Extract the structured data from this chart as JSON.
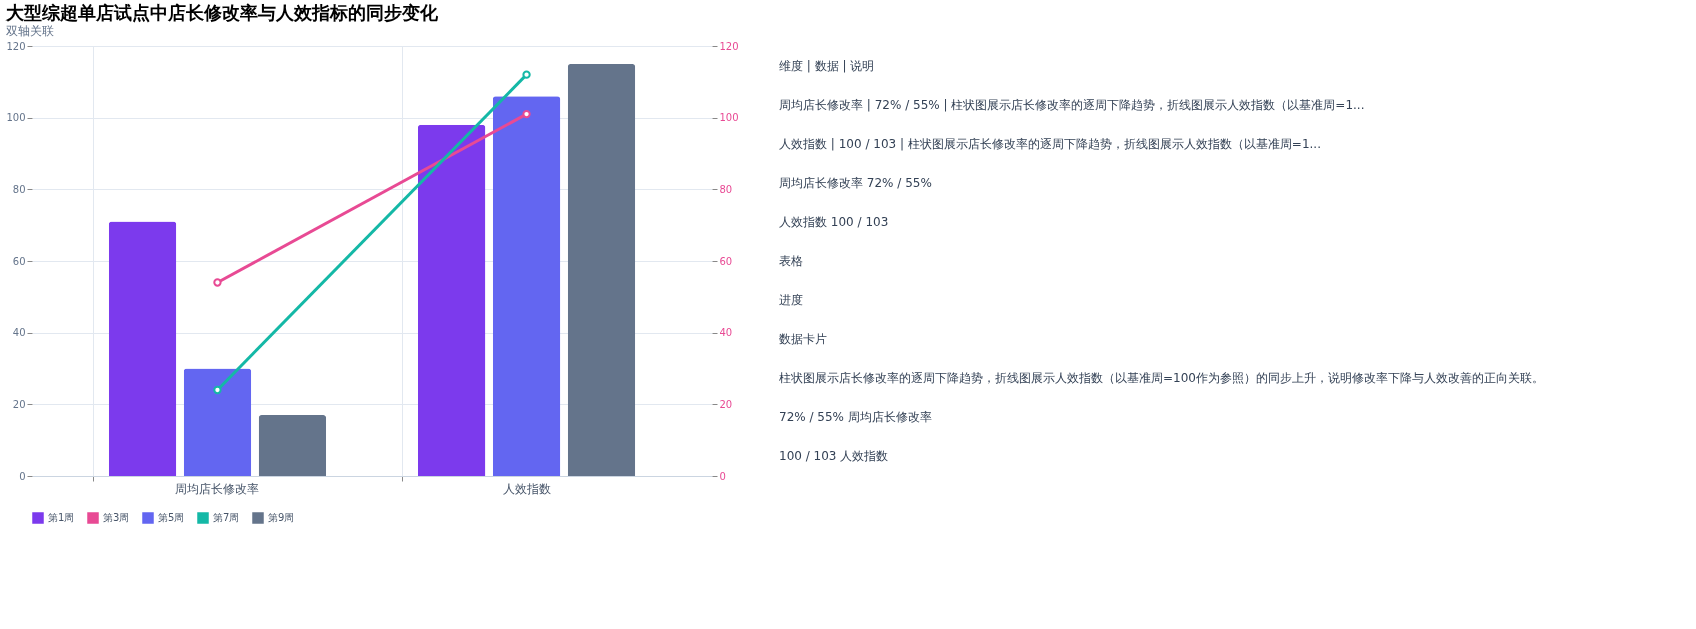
{
  "chart_data": {
    "type": "bar",
    "title": "大型综超单店试点中店长修改率与人效指标的同步变化",
    "subtitle": "双轴关联",
    "categories": [
      "周均店长修改率",
      "人效指数"
    ],
    "series": [
      {
        "name": "第1周",
        "color": "#7c3aed",
        "values": [
          71,
          98
        ]
      },
      {
        "name": "第3周",
        "type": "line",
        "axis": "y2",
        "color": "#e84a94",
        "values": [
          54,
          101
        ]
      },
      {
        "name": "第5周",
        "color": "#6366f1",
        "values": [
          30,
          106
        ]
      },
      {
        "name": "第7周",
        "type": "line",
        "axis": "y2",
        "color": "#14b8a6",
        "values": [
          24,
          112
        ]
      },
      {
        "name": "第9周",
        "color": "#64748b",
        "values": [
          17,
          115
        ]
      }
    ],
    "ylim": [
      0,
      120
    ],
    "yticks": [
      0,
      20,
      40,
      60,
      80,
      100,
      120
    ],
    "y2lim": [
      0,
      120
    ],
    "y2ticks": [
      0,
      20,
      40,
      60,
      80,
      100,
      120
    ],
    "grid": true,
    "legend": "bottom",
    "marker": "circle",
    "annotations": [
      "维度 | 数据 | 说明",
      "周均店长修改率 | 72% / 55% | 柱状图展示店长修改率的逐周下降趋势，折线图展示人效指数（以基准周=1...",
      "人效指数 | 100 / 103 | 柱状图展示店长修改率的逐周下降趋势，折线图展示人效指数（以基准周=1...",
      "周均店长修改率  72% / 55%",
      "人效指数  100 / 103",
      "表格",
      "进度",
      "数据卡片",
      "柱状图展示店长修改率的逐周下降趋势，折线图展示人效指数（以基准周=100作为参照）的同步上升，说明修改率下降与人效改善的正向关联。",
      "72% / 55%  周均店长修改率",
      "100 / 103  人效指数"
    ]
  }
}
